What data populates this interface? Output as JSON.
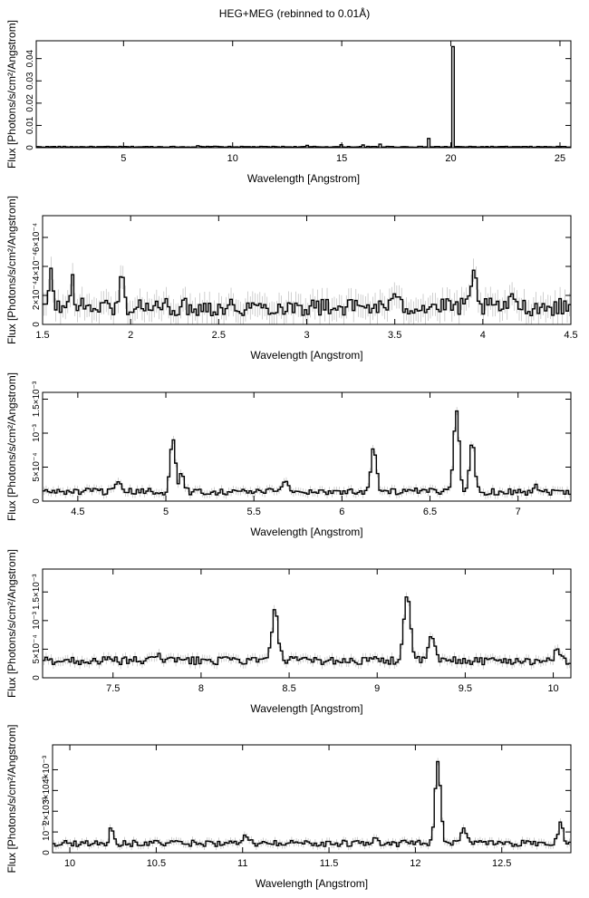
{
  "figure": {
    "title": "HEG+MEG (rebinned to 0.01Å)"
  },
  "chart_data": [
    {
      "type": "line",
      "xlabel": "Wavelength [Angstrom]",
      "ylabel": "Flux [Photons/s/cm²/Angstrom]",
      "xlim": [
        1.0,
        25.5
      ],
      "ylim": [
        0,
        0.048
      ],
      "xticks": [
        5,
        10,
        15,
        20,
        25
      ],
      "xtick_labels": [
        "5",
        "10",
        "15",
        "20",
        "25"
      ],
      "yticks": [
        0,
        0.01,
        0.02,
        0.03,
        0.04
      ],
      "ytick_labels": [
        "0",
        "0.01",
        "0.02",
        "0.03",
        "0.04"
      ],
      "continuum": 0.0004,
      "noise": 0.0002,
      "error": 0.0001,
      "lines": [
        [
          5.04,
          0.0008,
          0.01
        ],
        [
          6.65,
          0.0012,
          0.01
        ],
        [
          8.42,
          0.001,
          0.01
        ],
        [
          9.17,
          0.0014,
          0.01
        ],
        [
          12.13,
          0.0038,
          0.01
        ],
        [
          13.45,
          0.0018,
          0.02
        ],
        [
          15.01,
          0.0032,
          0.02
        ],
        [
          16.0,
          0.0012,
          0.02
        ],
        [
          16.78,
          0.0022,
          0.02
        ],
        [
          17.05,
          0.0028,
          0.02
        ],
        [
          18.97,
          0.0062,
          0.015
        ],
        [
          20.1,
          0.045,
          0.02
        ]
      ]
    },
    {
      "type": "line",
      "xlabel": "Wavelength [Angstrom]",
      "ylabel": "Flux [Photons/s/cm²/Angstrom]",
      "xlim": [
        1.5,
        4.5
      ],
      "ylim": [
        0,
        0.00075
      ],
      "xticks": [
        1.5,
        2,
        2.5,
        3,
        3.5,
        4,
        4.5
      ],
      "xtick_labels": [
        "1.5",
        "2",
        "2.5",
        "3",
        "3.5",
        "4",
        "4.5"
      ],
      "yticks": [
        0,
        0.0002,
        0.0004,
        0.0006
      ],
      "ytick_labels": [
        "0",
        "2×10⁻⁴",
        "4×10⁻⁴",
        "6×10⁻⁴"
      ],
      "continuum": 0.00012,
      "noise": 6e-05,
      "error": 8e-05,
      "lines": [
        [
          1.55,
          0.00025,
          0.01
        ],
        [
          1.67,
          0.0002,
          0.01
        ],
        [
          1.95,
          0.00024,
          0.01
        ],
        [
          3.52,
          0.00012,
          0.015
        ],
        [
          3.95,
          0.00022,
          0.015
        ],
        [
          4.18,
          8e-05,
          0.015
        ]
      ]
    },
    {
      "type": "line",
      "xlabel": "Wavelength [Angstrom]",
      "ylabel": "Flux [Photons/s/cm²/Angstrom]",
      "xlim": [
        4.3,
        7.3
      ],
      "ylim": [
        0,
        0.0016
      ],
      "xticks": [
        4.5,
        5,
        5.5,
        6,
        6.5,
        7
      ],
      "xtick_labels": [
        "4.5",
        "5",
        "5.5",
        "6",
        "6.5",
        "7"
      ],
      "yticks": [
        0,
        0.0005,
        0.001,
        0.0015
      ],
      "ytick_labels": [
        "0",
        "5×10⁻⁴",
        "10⁻³",
        "1.5×10⁻³"
      ],
      "continuum": 0.00014,
      "noise": 5e-05,
      "error": 6e-05,
      "lines": [
        [
          4.73,
          0.00012,
          0.012
        ],
        [
          5.04,
          0.0008,
          0.014
        ],
        [
          5.09,
          0.00028,
          0.012
        ],
        [
          5.68,
          0.0002,
          0.012
        ],
        [
          6.18,
          0.00065,
          0.016
        ],
        [
          6.65,
          0.0012,
          0.016
        ],
        [
          6.74,
          0.00072,
          0.014
        ],
        [
          7.1,
          0.00012,
          0.012
        ]
      ]
    },
    {
      "type": "line",
      "xlabel": "Wavelength [Angstrom]",
      "ylabel": "Flux [Photons/s/cm²/Angstrom]",
      "xlim": [
        7.1,
        10.1
      ],
      "ylim": [
        0,
        0.0019
      ],
      "xticks": [
        7.5,
        8,
        8.5,
        9,
        9.5,
        10
      ],
      "xtick_labels": [
        "7.5",
        "8",
        "8.5",
        "9",
        "9.5",
        "10"
      ],
      "yticks": [
        0,
        0.0005,
        0.001,
        0.0015
      ],
      "ytick_labels": [
        "0",
        "5×10⁻⁴",
        "10⁻³",
        "1.5×10⁻³"
      ],
      "continuum": 0.0003,
      "noise": 7e-05,
      "error": 8e-05,
      "lines": [
        [
          7.76,
          0.00018,
          0.012
        ],
        [
          8.42,
          0.00085,
          0.018
        ],
        [
          9.17,
          0.0012,
          0.018
        ],
        [
          9.31,
          0.00045,
          0.016
        ],
        [
          10.02,
          0.00018,
          0.014
        ]
      ]
    },
    {
      "type": "line",
      "xlabel": "Wavelength [Angstrom]",
      "ylabel": "Flux [Photons/s/cm²/Angstrom]",
      "xlim": [
        9.9,
        12.9
      ],
      "ylim": [
        0,
        0.0052
      ],
      "xticks": [
        10,
        10.5,
        11,
        11.5,
        12,
        12.5
      ],
      "xtick_labels": [
        "10",
        "10.5",
        "11",
        "11.5",
        "12",
        "12.5"
      ],
      "yticks": [
        0,
        0.001,
        0.002,
        0.003,
        0.004
      ],
      "ytick_labels": [
        "0",
        "10⁻³",
        "2×10⁻³",
        "3×10⁻³",
        "4×10⁻³"
      ],
      "continuum": 0.00045,
      "noise": 0.00015,
      "error": 0.00018,
      "lines": [
        [
          10.24,
          0.0007,
          0.012
        ],
        [
          11.02,
          0.0003,
          0.014
        ],
        [
          11.77,
          0.0004,
          0.014
        ],
        [
          12.13,
          0.0038,
          0.016
        ],
        [
          12.28,
          0.0007,
          0.016
        ],
        [
          12.84,
          0.0009,
          0.016
        ]
      ]
    }
  ]
}
